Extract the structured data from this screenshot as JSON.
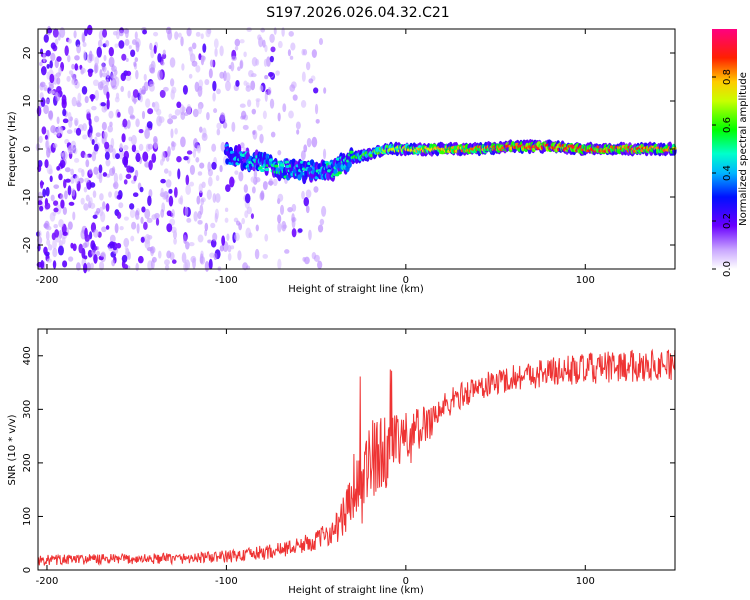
{
  "page_title": "S197.2026.026.04.32.C21",
  "colors": {
    "snr_line": "#ee3333",
    "background": "#ffffff",
    "axes": "#000000"
  },
  "chart_data": [
    {
      "type": "heatmap",
      "title": "S197.2026.026.04.32.C21",
      "xlabel": "Height of straight line (km)",
      "ylabel": "Frequency (Hz)",
      "xlim": [
        -205,
        150
      ],
      "ylim": [
        -25,
        25
      ],
      "x_ticks": [
        -200,
        -100,
        0,
        100
      ],
      "y_ticks": [
        -20,
        -10,
        0,
        10,
        20
      ],
      "grid": false,
      "colorbar": {
        "label": "Normalized spectral amplitude",
        "range": [
          0,
          1
        ],
        "ticks": [
          0.0,
          0.2,
          0.4,
          0.6,
          0.8
        ],
        "tick_labels": [
          "0.0",
          "0.2",
          "0.4",
          "0.6",
          "0.8"
        ],
        "colormap": "rainbow (white-violet-blue-cyan-green-yellow-red-magenta)"
      },
      "ridge": {
        "x": [
          -100,
          -90,
          -80,
          -70,
          -60,
          -50,
          -40,
          -30,
          -20,
          -10,
          0,
          20,
          40,
          60,
          80,
          100,
          120,
          150
        ],
        "frequency_hz": [
          -1,
          -2,
          -3,
          -4,
          -4.5,
          -4.5,
          -4,
          -2,
          -1,
          0,
          0,
          0,
          0,
          0.5,
          0.5,
          0,
          0,
          0
        ],
        "amplitude": [
          0.35,
          0.45,
          0.5,
          0.5,
          0.45,
          0.45,
          0.5,
          0.55,
          0.6,
          0.65,
          0.75,
          0.8,
          0.8,
          0.85,
          0.9,
          0.85,
          0.85,
          0.8
        ]
      },
      "noise_region_x": [
        -205,
        -50
      ]
    },
    {
      "type": "line",
      "xlabel": "Height of straight line (km)",
      "ylabel": "SNR (10 * v/v)",
      "xlim": [
        -205,
        150
      ],
      "ylim": [
        0,
        450
      ],
      "x_ticks": [
        -200,
        -100,
        0,
        100
      ],
      "y_ticks": [
        0,
        100,
        200,
        300,
        400
      ],
      "grid": false,
      "series": [
        {
          "name": "SNR",
          "x": [
            -205,
            -180,
            -160,
            -140,
            -120,
            -100,
            -90,
            -80,
            -70,
            -60,
            -50,
            -40,
            -35,
            -30,
            -25,
            -20,
            -15,
            -10,
            -5,
            0,
            10,
            20,
            30,
            40,
            50,
            60,
            80,
            100,
            120,
            150
          ],
          "values": [
            18,
            20,
            20,
            21,
            22,
            25,
            28,
            32,
            38,
            45,
            55,
            75,
            95,
            140,
            170,
            200,
            215,
            225,
            230,
            240,
            270,
            300,
            325,
            340,
            350,
            360,
            370,
            375,
            380,
            385
          ],
          "noise_amplitude": [
            10,
            10,
            10,
            10,
            10,
            12,
            12,
            14,
            14,
            16,
            18,
            25,
            40,
            70,
            90,
            80,
            70,
            70,
            60,
            55,
            40,
            30,
            25,
            25,
            25,
            25,
            28,
            30,
            30,
            30
          ]
        }
      ]
    }
  ]
}
